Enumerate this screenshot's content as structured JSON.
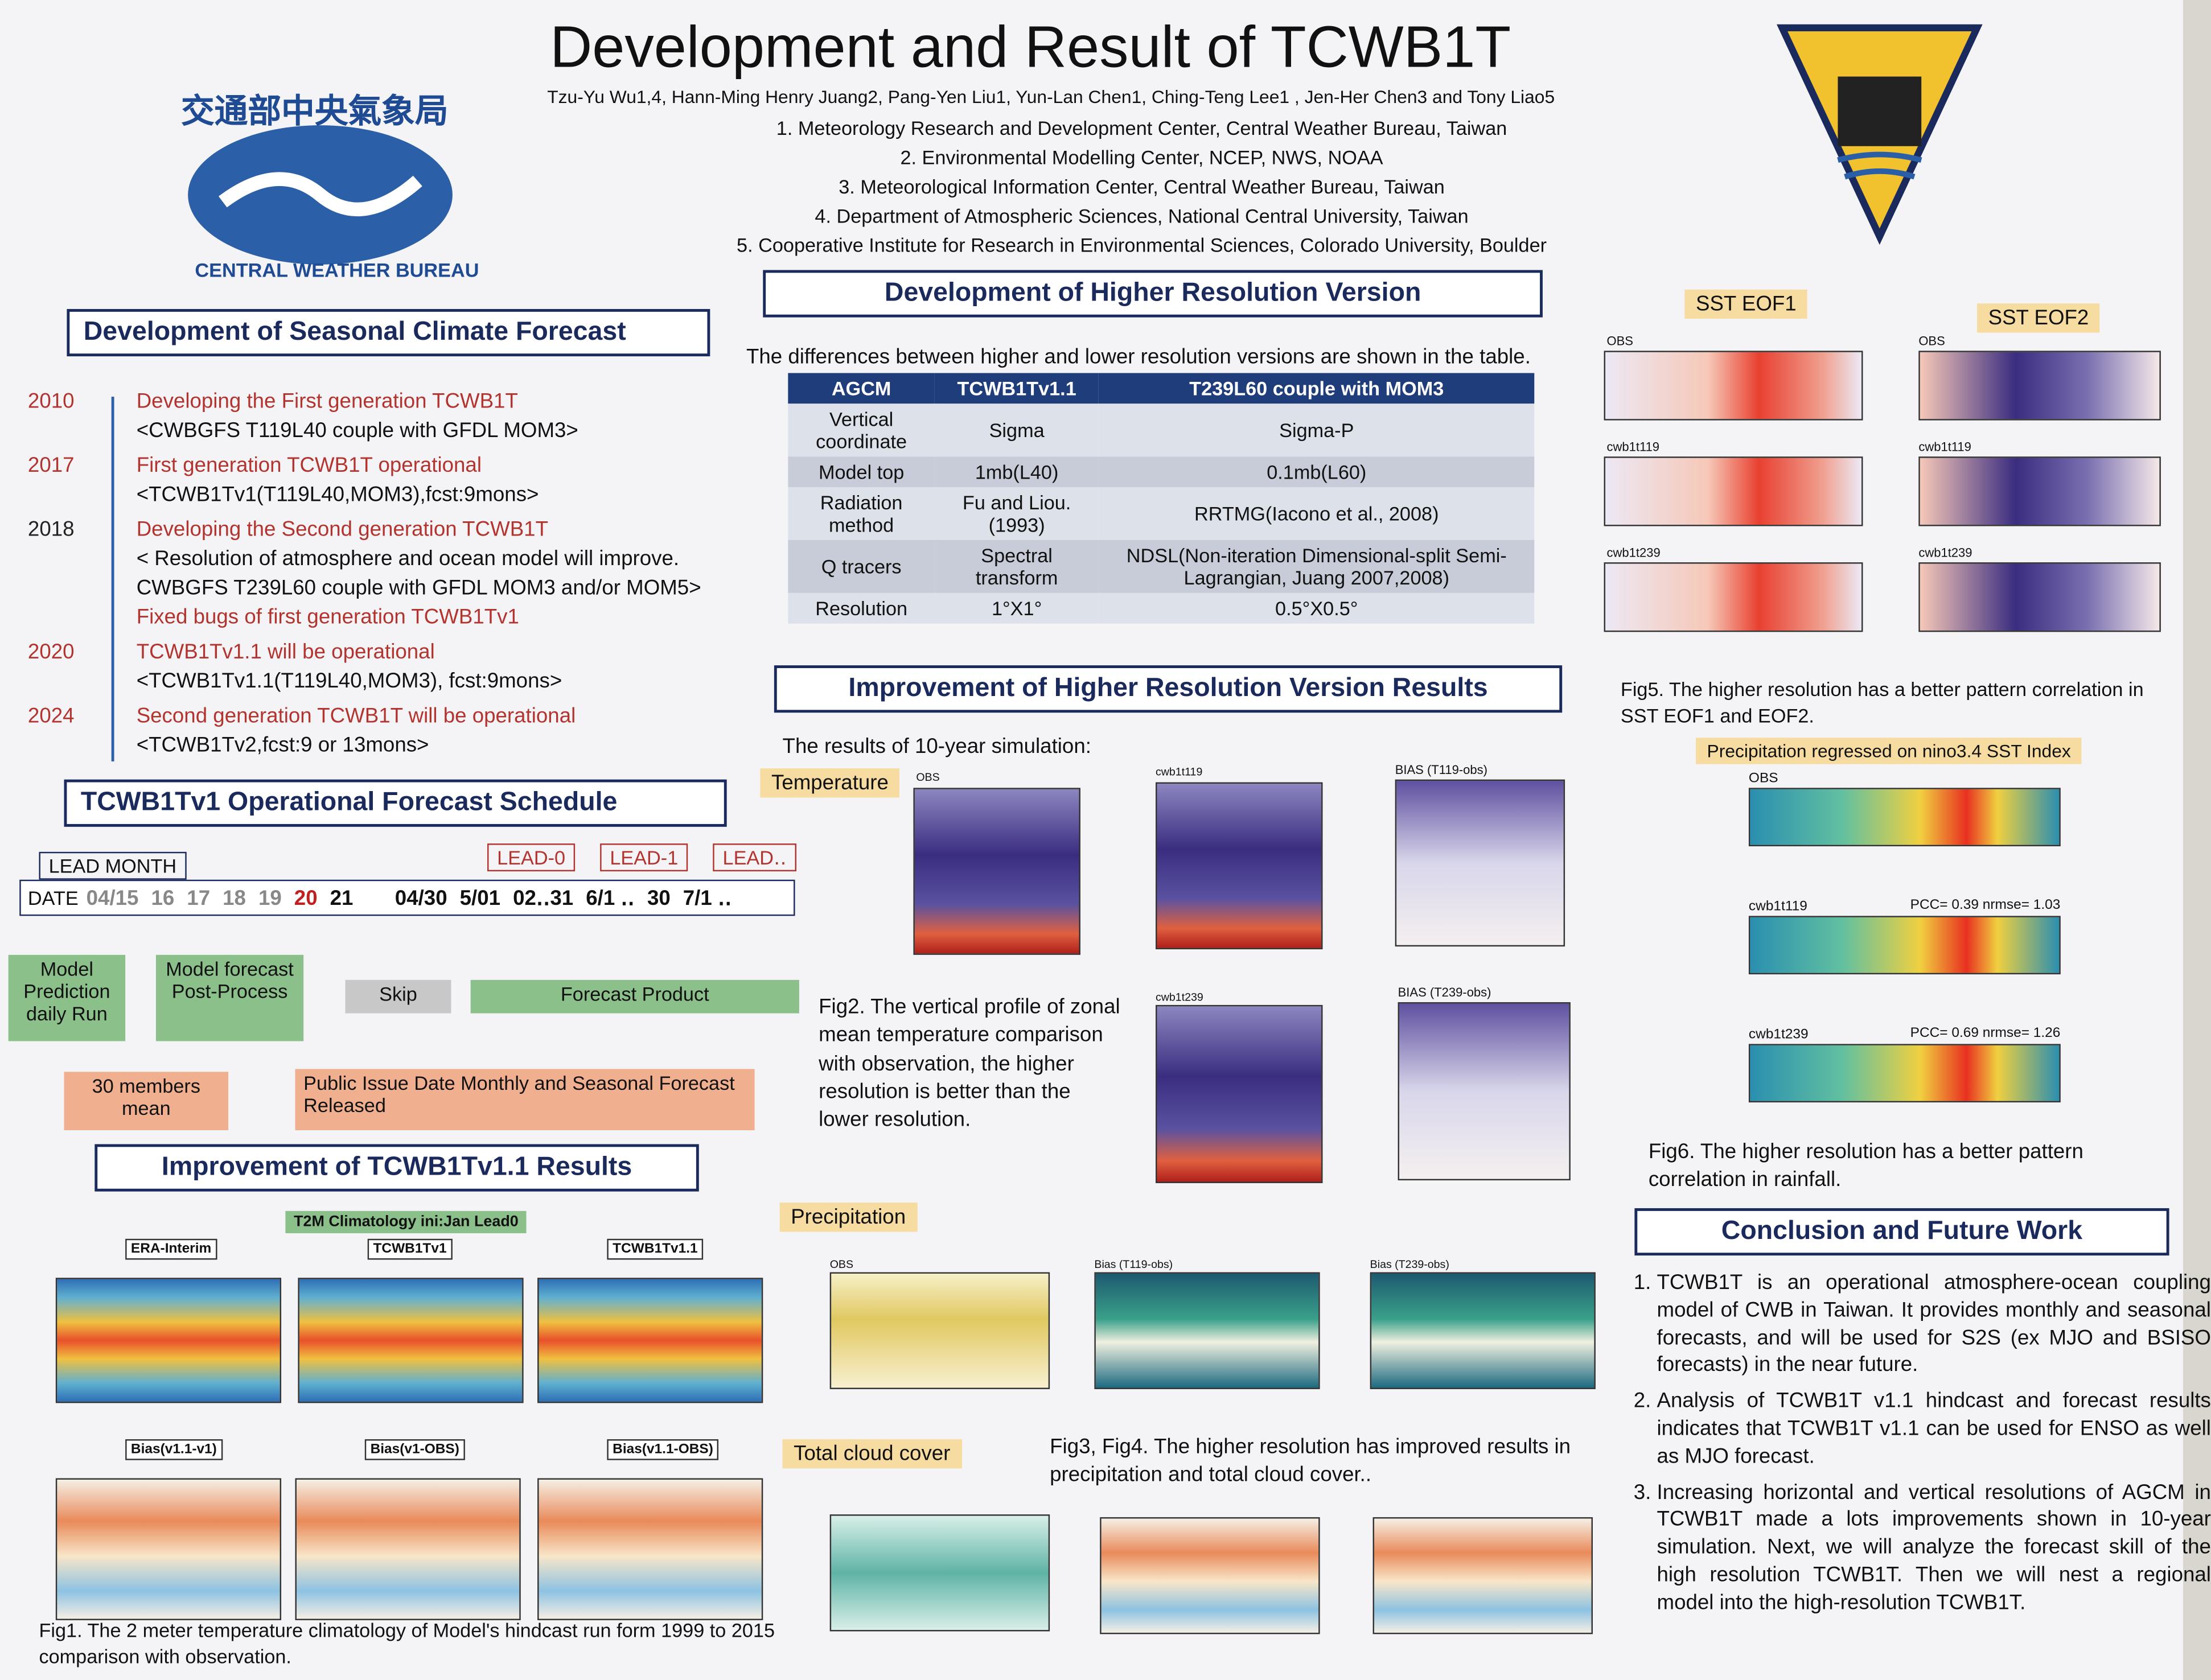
{
  "title": "Development and Result of TCWB1T",
  "authors": "Tzu-Yu Wu1,4, Hann-Ming Henry Juang2, Pang-Yen Liu1, Yun-Lan Chen1, Ching-Teng Lee1 , Jen-Her Chen3 and Tony Liao5",
  "affiliations": [
    "1. Meteorology Research and Development Center, Central Weather Bureau, Taiwan",
    "2. Environmental Modelling Center, NCEP, NWS, NOAA",
    "3. Meteorological Information Center, Central Weather Bureau, Taiwan",
    "4. Department of Atmospheric Sciences, National Central University, Taiwan",
    "5. Cooperative Institute for Research in Environmental Sciences, Colorado University, Boulder"
  ],
  "logo_left": {
    "chinese": "交通部中央氣象局",
    "english": "CENTRAL WEATHER BUREAU"
  },
  "seasonal": {
    "heading": "Development of Seasonal Climate Forecast",
    "timeline": [
      {
        "year": "2010",
        "lines": [
          "Developing the First generation TCWB1T",
          "<CWBGFS T119L40 couple with GFDL MOM3>"
        ]
      },
      {
        "year": "2017",
        "lines": [
          "First generation TCWB1T operational",
          "<TCWB1Tv1(T119L40,MOM3),fcst:9mons>"
        ]
      },
      {
        "year": "2018",
        "lines": [
          "Developing the Second generation TCWB1T",
          "< Resolution of atmosphere and ocean model will improve.",
          "CWBGFS T239L60 couple with GFDL MOM3 and/or MOM5>",
          "Fixed bugs of first generation TCWB1Tv1"
        ]
      },
      {
        "year": "2020",
        "lines": [
          "TCWB1Tv1.1 will be operational",
          "<TCWB1Tv1.1(T119L40,MOM3), fcst:9mons>"
        ]
      },
      {
        "year": "2024",
        "lines": [
          "Second generation TCWB1T will be operational",
          "<TCWB1Tv2,fcst:9 or 13mons>"
        ]
      }
    ]
  },
  "schedule": {
    "heading": "TCWB1Tv1 Operational Forecast Schedule",
    "lead_month": "LEAD MONTH",
    "date": "DATE",
    "dates": [
      "04/15",
      "16",
      "17",
      "18",
      "19",
      "20",
      "21",
      "04/30",
      "5/01",
      "02‥31",
      "6/1 ‥",
      "30",
      "7/1 ‥"
    ],
    "leads": [
      "LEAD-0",
      "LEAD-1",
      "LEAD‥"
    ],
    "boxes": [
      "Model Prediction daily Run",
      "Model forecast Post-Process",
      "Skip",
      "Forecast Product",
      "30 members mean",
      "Public Issue Date Monthly and Seasonal Forecast Released"
    ]
  },
  "improvement_v11": {
    "heading": "Improvement of TCWB1Tv1.1 Results",
    "subtitle": "T2M Climatology ini:Jan Lead0",
    "panels": [
      "ERA-Interim",
      "TCWB1Tv1",
      "TCWB1Tv1.1",
      "Bias(v1.1-v1)",
      "Bias(v1-OBS)",
      "Bias(v1.1-OBS)"
    ],
    "caption": "Fig1. The 2 meter temperature climatology of Model's hindcast run form 1999 to 2015 comparison with observation."
  },
  "higher_res": {
    "heading": "Development of Higher Resolution Version",
    "intro": "The differences between higher and lower resolution versions are shown in the table.",
    "table": {
      "header": [
        "AGCM",
        "TCWB1Tv1.1",
        "T239L60 couple with MOM3"
      ],
      "rows": [
        [
          "Vertical coordinate",
          "Sigma",
          "Sigma-P"
        ],
        [
          "Model top",
          "1mb(L40)",
          "0.1mb(L60)"
        ],
        [
          "Radiation method",
          "Fu and Liou. (1993)",
          "RRTMG(Iacono et al., 2008)"
        ],
        [
          "Q tracers",
          "Spectral transform",
          "NDSL(Non-iteration Dimensional-split Semi-Lagrangian, Juang 2007,2008)"
        ],
        [
          "Resolution",
          "1°X1°",
          "0.5°X0.5°"
        ]
      ]
    }
  },
  "results": {
    "heading": "Improvement of Higher Resolution Version Results",
    "intro": "The results of 10-year simulation:",
    "temperature_label": "Temperature",
    "temperature_panels": [
      "OBS",
      "cwb1t119",
      "BIAS (T119-obs)",
      "cwb1t239",
      "BIAS (T239-obs)"
    ],
    "fig2_caption": "Fig2. The vertical profile of zonal mean temperature comparison with observation, the higher resolution is better than the lower resolution.",
    "precipitation_label": "Precipitation",
    "cloud_label": "Total cloud cover",
    "map_panels": [
      "OBS",
      "Bias (T119-obs)",
      "Bias (T239-obs)"
    ],
    "fig34_caption": "Fig3, Fig4. The higher resolution has improved results in precipitation and total cloud cover.."
  },
  "sst": {
    "labels": [
      "SST EOF1",
      "SST EOF2"
    ],
    "rows": [
      "OBS",
      "cwb1t119",
      "cwb1t239"
    ],
    "caption": "Fig5. The higher resolution has a better pattern correlation in SST EOF1 and EOF2."
  },
  "precip": {
    "heading": "Precipitation regressed on nino3.4 SST Index",
    "panels": [
      {
        "name": "OBS"
      },
      {
        "name": "cwb1t119",
        "stat": "PCC= 0.39 nrmse= 1.03"
      },
      {
        "name": "cwb1t239",
        "stat": "PCC= 0.69 nrmse= 1.26"
      }
    ],
    "caption": "Fig6. The higher resolution has a better pattern correlation in rainfall."
  },
  "conclusion": {
    "heading": "Conclusion and Future Work",
    "items": [
      "TCWB1T is an operational atmosphere-ocean coupling model of CWB in Taiwan. It provides monthly and seasonal forecasts, and will be used for S2S (ex MJO and BSISO forecasts) in the near future.",
      "Analysis of TCWB1T v1.1 hindcast and forecast results indicates that TCWB1T v1.1 can be used for ENSO as well as MJO forecast.",
      "Increasing horizontal and vertical resolutions of AGCM in TCWB1T made a lots improvements shown in 10-year simulation. Next, we will analyze the forecast skill of the high resolution TCWB1T. Then we will nest a regional model into the high-resolution TCWB1T."
    ]
  }
}
